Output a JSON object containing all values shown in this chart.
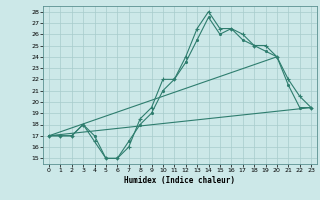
{
  "xlabel": "Humidex (Indice chaleur)",
  "bg_color": "#cce8e8",
  "line_color": "#2e7d6e",
  "grid_color": "#a8cccc",
  "xlim": [
    -0.5,
    23.5
  ],
  "ylim": [
    14.5,
    28.5
  ],
  "xticks": [
    0,
    1,
    2,
    3,
    4,
    5,
    6,
    7,
    8,
    9,
    10,
    11,
    12,
    13,
    14,
    15,
    16,
    17,
    18,
    19,
    20,
    21,
    22,
    23
  ],
  "yticks": [
    15,
    16,
    17,
    18,
    19,
    20,
    21,
    22,
    23,
    24,
    25,
    26,
    27,
    28
  ],
  "line1_x": [
    0,
    1,
    2,
    3,
    4,
    5,
    6,
    7,
    8,
    9,
    10,
    11,
    12,
    13,
    14,
    15,
    16,
    17,
    18,
    19,
    20,
    21,
    22,
    23
  ],
  "line1_y": [
    17,
    17,
    17,
    18,
    16.5,
    15,
    15,
    16,
    18.5,
    19.5,
    22,
    22,
    24,
    26.5,
    28,
    26.5,
    26.5,
    26,
    25,
    25,
    24,
    22,
    20.5,
    19.5
  ],
  "line2_x": [
    0,
    1,
    2,
    3,
    4,
    5,
    6,
    7,
    8,
    9,
    10,
    11,
    12,
    13,
    14,
    15,
    16,
    17,
    18,
    19,
    20,
    21,
    22,
    23
  ],
  "line2_y": [
    17,
    17,
    17,
    18,
    17,
    15,
    15,
    16.5,
    18,
    19,
    21,
    22,
    23.5,
    25.5,
    27.5,
    26,
    26.5,
    25.5,
    25,
    24.5,
    24,
    21.5,
    19.5,
    19.5
  ],
  "line3_x": [
    0,
    23
  ],
  "line3_y": [
    17,
    19.5
  ],
  "line4_x": [
    0,
    20
  ],
  "line4_y": [
    17,
    24
  ]
}
